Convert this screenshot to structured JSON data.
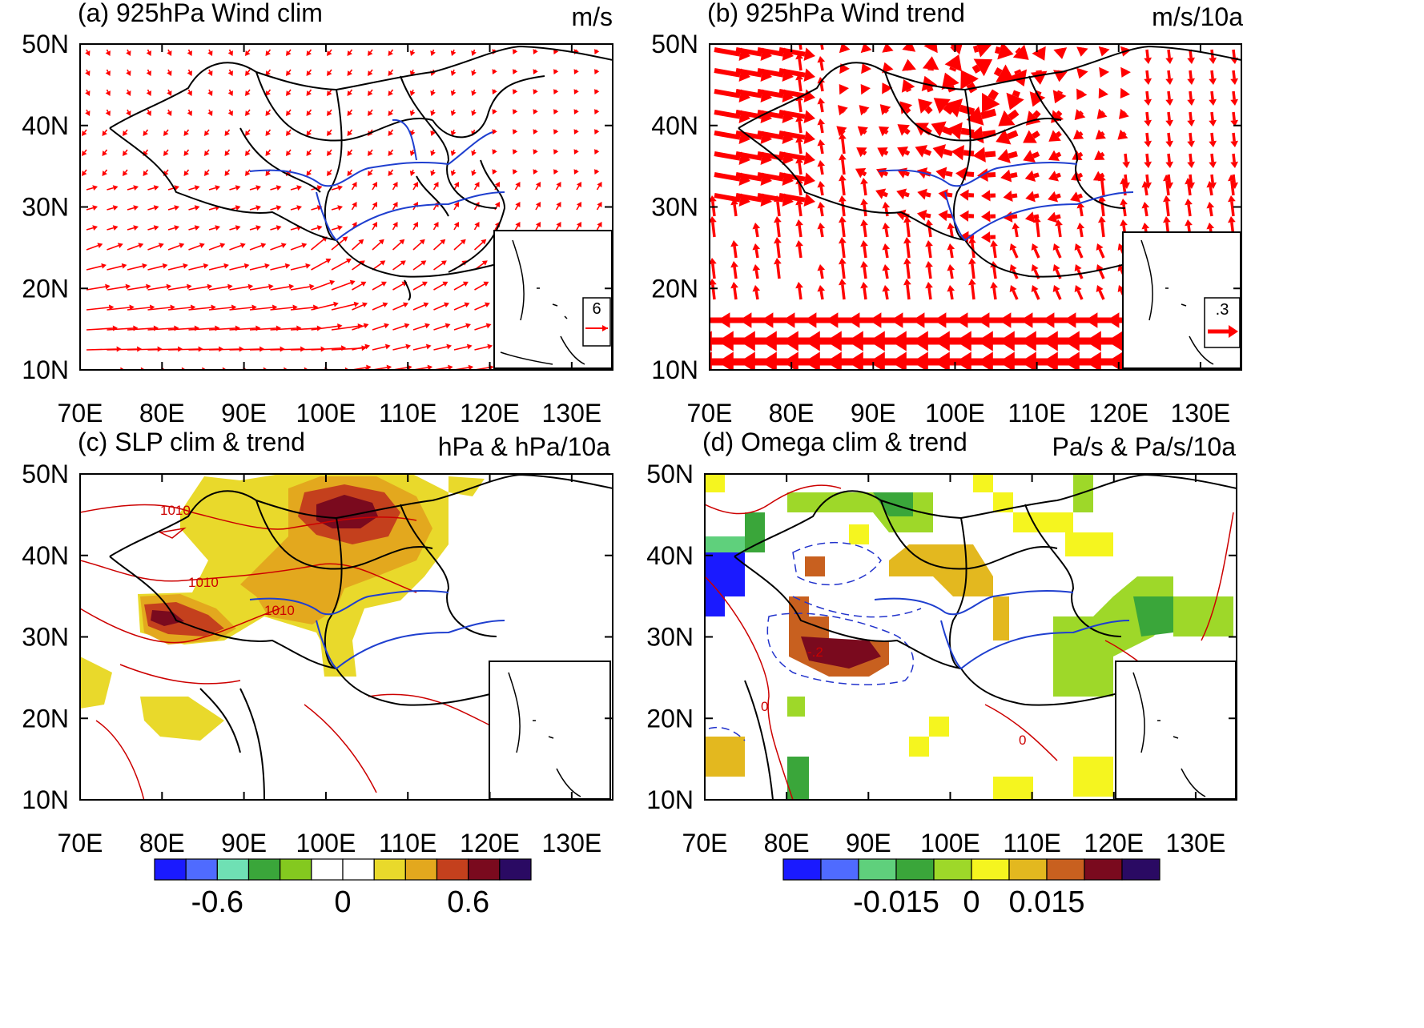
{
  "panels": [
    {
      "id": "a",
      "title": "(a) 925hPa Wind clim",
      "unit": "m/s",
      "ref_vector": "6"
    },
    {
      "id": "b",
      "title": "(b) 925hPa Wind trend",
      "unit": "m/s/10a",
      "ref_vector": ".3"
    },
    {
      "id": "c",
      "title": "(c) SLP clim & trend",
      "unit": "hPa & hPa/10a",
      "contour_labels": [
        "1010",
        "1010",
        "1010"
      ]
    },
    {
      "id": "d",
      "title": "(d) Omega clim & trend",
      "unit": "Pa/s & Pa/s/10a",
      "contour_labels": [
        "-.2",
        "0",
        "0"
      ]
    }
  ],
  "axes": {
    "lat_ticks": [
      "50N",
      "40N",
      "30N",
      "20N",
      "10N"
    ],
    "lon_ticks": [
      "70E",
      "80E",
      "90E",
      "100E",
      "110E",
      "120E",
      "130E"
    ],
    "lon_range": [
      70,
      135
    ],
    "lat_range": [
      10,
      50
    ]
  },
  "colorbars": [
    {
      "panel": "c",
      "labels": [
        "-0.6",
        "0",
        "0.6"
      ],
      "colors": [
        "#1a1aff",
        "#4f6bff",
        "#6fe0b4",
        "#3aa63a",
        "#84c91f",
        "#ffffff",
        "#ffffff",
        "#e9d92b",
        "#e3a81e",
        "#c4401d",
        "#7a0a1e",
        "#2a0a63"
      ]
    },
    {
      "panel": "d",
      "labels": [
        "-0.015",
        "0",
        "0.015"
      ],
      "colors": [
        "#1a1aff",
        "#4f6bff",
        "#5fd07c",
        "#3aa63a",
        "#9ed829",
        "#f5f51f",
        "#e3b81f",
        "#c8601f",
        "#7a0a1e",
        "#2a0a63"
      ]
    }
  ],
  "colors": {
    "vector": "#ff0000",
    "contour_pos": "#cc0000",
    "contour_neg": "#2233cc",
    "river": "#1f3fcf",
    "boundary": "#000000"
  }
}
